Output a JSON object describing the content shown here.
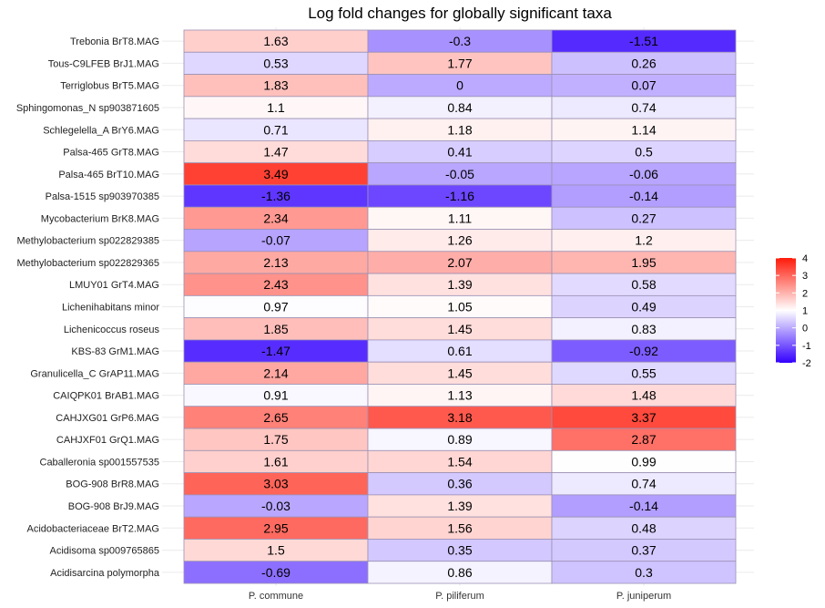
{
  "chart_data": {
    "type": "heatmap",
    "title": "Log fold changes for globally significant taxa",
    "columns": [
      "P. commune",
      "P. piliferum",
      "P. juniperum"
    ],
    "rows": [
      {
        "label": "Trebonia BrT8.MAG",
        "values": [
          1.63,
          -0.3,
          -1.51
        ],
        "highlight": false
      },
      {
        "label": "Tous-C9LFEB BrJ1.MAG",
        "values": [
          0.53,
          1.77,
          0.26
        ],
        "highlight": false
      },
      {
        "label": "Terriglobus BrT5.MAG",
        "values": [
          1.83,
          0,
          0.07
        ],
        "highlight": false
      },
      {
        "label": "Sphingomonas_N sp903871605",
        "values": [
          1.1,
          0.84,
          0.74
        ],
        "highlight": false
      },
      {
        "label": "Schlegelella_A BrY6.MAG",
        "values": [
          0.71,
          1.18,
          1.14
        ],
        "highlight": false
      },
      {
        "label": "Palsa-465 GrT8.MAG",
        "values": [
          1.47,
          0.41,
          0.5
        ],
        "highlight": false
      },
      {
        "label": "Palsa-465 BrT10.MAG",
        "values": [
          3.49,
          -0.05,
          -0.06
        ],
        "highlight": false
      },
      {
        "label": "Palsa-1515 sp903970385",
        "values": [
          -1.36,
          -1.16,
          -0.14
        ],
        "highlight": false
      },
      {
        "label": "Mycobacterium BrK8.MAG",
        "values": [
          2.34,
          1.11,
          0.27
        ],
        "highlight": false
      },
      {
        "label": "Methylobacterium sp022829385",
        "values": [
          -0.07,
          1.26,
          1.2
        ],
        "highlight": false
      },
      {
        "label": "Methylobacterium sp022829365",
        "values": [
          2.13,
          2.07,
          1.95
        ],
        "highlight": false
      },
      {
        "label": "LMUY01 GrT4.MAG",
        "values": [
          2.43,
          1.39,
          0.58
        ],
        "highlight": false
      },
      {
        "label": "Lichenihabitans minor",
        "values": [
          0.97,
          1.05,
          0.49
        ],
        "highlight": false
      },
      {
        "label": "Lichenicoccus roseus",
        "values": [
          1.85,
          1.45,
          0.83
        ],
        "highlight": false
      },
      {
        "label": "KBS-83 GrM1.MAG",
        "values": [
          -1.47,
          0.61,
          -0.92
        ],
        "highlight": true
      },
      {
        "label": "Granulicella_C GrAP11.MAG",
        "values": [
          2.14,
          1.45,
          0.55
        ],
        "highlight": false
      },
      {
        "label": "CAIQPK01 BrAB1.MAG",
        "values": [
          0.91,
          1.13,
          1.48
        ],
        "highlight": false
      },
      {
        "label": "CAHJXG01 GrP6.MAG",
        "values": [
          2.65,
          3.18,
          3.37
        ],
        "highlight": false
      },
      {
        "label": "CAHJXF01 GrQ1.MAG",
        "values": [
          1.75,
          0.89,
          2.87
        ],
        "highlight": false
      },
      {
        "label": "Caballeronia sp001557535",
        "values": [
          1.61,
          1.54,
          0.99
        ],
        "highlight": false
      },
      {
        "label": "BOG-908 BrR8.MAG",
        "values": [
          3.03,
          0.36,
          0.74
        ],
        "highlight": false
      },
      {
        "label": "BOG-908 BrJ9.MAG",
        "values": [
          -0.03,
          1.39,
          -0.14
        ],
        "highlight": false
      },
      {
        "label": "Acidobacteriaceae BrT2.MAG",
        "values": [
          2.95,
          1.56,
          0.48
        ],
        "highlight": false
      },
      {
        "label": "Acidisoma sp009765865",
        "values": [
          1.5,
          0.35,
          0.37
        ],
        "highlight": false
      },
      {
        "label": "Acidisarcina polymorpha",
        "values": [
          -0.69,
          0.86,
          0.3
        ],
        "highlight": false
      }
    ],
    "scale": {
      "min": -2,
      "max": 4,
      "midpoint": 1,
      "low_color": "#3300ff",
      "mid_color": "#ffffff",
      "high_color": "#ff1a0a",
      "ticks": [
        4,
        3,
        2,
        1,
        0,
        -1,
        -2
      ]
    },
    "highlight_color": "#ff0000",
    "grid": true,
    "legend_position": "right"
  }
}
